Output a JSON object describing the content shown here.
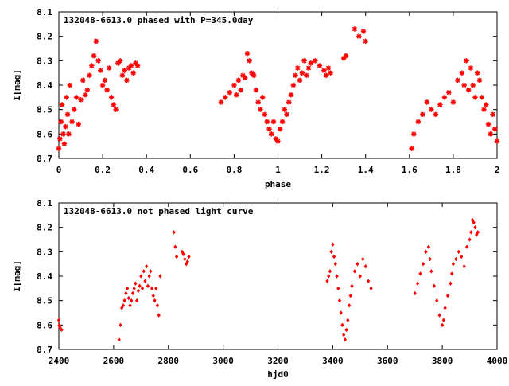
{
  "chart_data": [
    {
      "type": "scatter",
      "title": "132048-6613.0 phased with P=345.0day",
      "xlabel": "phase",
      "ylabel": "I[mag]",
      "xlim": [
        0,
        2
      ],
      "ylim": [
        8.1,
        8.7
      ],
      "y_inverted": true,
      "xticks": [
        "0",
        "0.2",
        "0.4",
        "0.6",
        "0.8",
        "1",
        "1.2",
        "1.4",
        "1.6",
        "1.8",
        "2"
      ],
      "yticks": [
        "8.1",
        "8.2",
        "8.3",
        "8.4",
        "8.5",
        "8.6",
        "8.7"
      ],
      "marker": "asterisk",
      "color": "#ff0000",
      "series": [
        {
          "x": [
            0.0,
            0.005,
            0.01,
            0.015,
            0.02,
            0.025,
            0.03,
            0.035,
            0.04,
            0.045,
            0.05,
            0.06,
            0.07,
            0.08,
            0.09,
            0.1,
            0.11,
            0.12,
            0.13,
            0.14,
            0.15,
            0.16,
            0.17,
            0.18,
            0.19,
            0.2,
            0.21,
            0.22,
            0.23,
            0.24,
            0.25,
            0.26,
            0.27,
            0.28,
            0.29,
            0.3,
            0.31,
            0.32,
            0.33,
            0.34,
            0.35,
            0.36,
            0.74,
            0.76,
            0.78,
            0.8,
            0.81,
            0.82,
            0.83,
            0.84,
            0.85,
            0.86,
            0.87,
            0.88,
            0.89,
            0.9,
            0.91,
            0.92,
            0.93,
            0.94,
            0.95,
            0.96,
            0.97,
            0.98,
            0.99,
            1.0,
            1.01,
            1.02,
            1.03,
            1.04,
            1.05,
            1.06,
            1.07,
            1.08,
            1.09,
            1.1,
            1.11,
            1.12,
            1.13,
            1.14,
            1.15,
            1.17,
            1.19,
            1.21,
            1.22,
            1.23,
            1.24,
            1.3,
            1.31,
            1.35,
            1.37,
            1.39,
            1.4,
            1.61,
            1.62,
            1.64,
            1.66,
            1.68,
            1.7,
            1.72,
            1.74,
            1.76,
            1.78,
            1.8,
            1.82,
            1.84,
            1.85,
            1.86,
            1.87,
            1.88,
            1.89,
            1.9,
            1.91,
            1.92,
            1.93,
            1.94,
            1.95,
            1.96,
            1.97,
            1.98,
            1.99,
            2.0
          ],
          "y": [
            8.66,
            8.62,
            8.55,
            8.48,
            8.6,
            8.64,
            8.57,
            8.45,
            8.52,
            8.6,
            8.4,
            8.55,
            8.5,
            8.45,
            8.56,
            8.46,
            8.38,
            8.44,
            8.42,
            8.36,
            8.32,
            8.28,
            8.22,
            8.3,
            8.34,
            8.4,
            8.38,
            8.42,
            8.33,
            8.45,
            8.48,
            8.5,
            8.31,
            8.3,
            8.36,
            8.34,
            8.38,
            8.33,
            8.32,
            8.35,
            8.31,
            8.32,
            8.47,
            8.45,
            8.43,
            8.4,
            8.44,
            8.38,
            8.42,
            8.36,
            8.37,
            8.27,
            8.3,
            8.35,
            8.36,
            8.42,
            8.47,
            8.5,
            8.45,
            8.52,
            8.55,
            8.58,
            8.6,
            8.55,
            8.62,
            8.63,
            8.58,
            8.55,
            8.5,
            8.52,
            8.47,
            8.44,
            8.4,
            8.36,
            8.33,
            8.38,
            8.35,
            8.3,
            8.36,
            8.33,
            8.31,
            8.3,
            8.32,
            8.34,
            8.36,
            8.33,
            8.35,
            8.29,
            8.28,
            8.17,
            8.2,
            8.18,
            8.22,
            8.66,
            8.6,
            8.55,
            8.52,
            8.47,
            8.5,
            8.52,
            8.48,
            8.45,
            8.43,
            8.47,
            8.38,
            8.35,
            8.4,
            8.3,
            8.42,
            8.33,
            8.4,
            8.45,
            8.35,
            8.38,
            8.45,
            8.5,
            8.48,
            8.56,
            8.6,
            8.52,
            8.58,
            8.63
          ]
        }
      ]
    },
    {
      "type": "scatter",
      "title": "132048-6613.0 not phased light curve",
      "xlabel": "hjd0",
      "ylabel": "I[mag]",
      "xlim": [
        2400,
        4000
      ],
      "ylim": [
        8.1,
        8.7
      ],
      "y_inverted": true,
      "xticks": [
        "2400",
        "2600",
        "2800",
        "3000",
        "3200",
        "3400",
        "3600",
        "3800",
        "4000"
      ],
      "yticks": [
        "8.1",
        "8.2",
        "8.3",
        "8.4",
        "8.5",
        "8.6",
        "8.7"
      ],
      "marker": "diamond",
      "color": "#ff0000",
      "series": [
        {
          "x": [
            2400,
            2402,
            2404,
            2410,
            2620,
            2625,
            2630,
            2635,
            2640,
            2645,
            2650,
            2655,
            2660,
            2665,
            2670,
            2675,
            2680,
            2685,
            2690,
            2695,
            2700,
            2705,
            2710,
            2715,
            2720,
            2725,
            2730,
            2735,
            2740,
            2745,
            2750,
            2755,
            2760,
            2765,
            2770,
            2820,
            2825,
            2830,
            2850,
            2855,
            2860,
            2865,
            2870,
            2875,
            3380,
            3385,
            3390,
            3395,
            3400,
            3405,
            3410,
            3415,
            3420,
            3425,
            3430,
            3435,
            3440,
            3445,
            3450,
            3455,
            3460,
            3465,
            3470,
            3480,
            3490,
            3500,
            3510,
            3520,
            3530,
            3540,
            3700,
            3710,
            3720,
            3730,
            3740,
            3750,
            3755,
            3760,
            3770,
            3780,
            3790,
            3800,
            3805,
            3810,
            3820,
            3830,
            3835,
            3840,
            3850,
            3860,
            3870,
            3880,
            3890,
            3900,
            3905,
            3910,
            3915,
            3920,
            3925,
            3930
          ],
          "y": [
            8.58,
            8.6,
            8.61,
            8.62,
            8.66,
            8.6,
            8.53,
            8.52,
            8.5,
            8.47,
            8.45,
            8.49,
            8.52,
            8.5,
            8.47,
            8.45,
            8.43,
            8.5,
            8.46,
            8.44,
            8.4,
            8.45,
            8.38,
            8.42,
            8.36,
            8.44,
            8.4,
            8.38,
            8.45,
            8.48,
            8.5,
            8.45,
            8.52,
            8.56,
            8.4,
            8.22,
            8.28,
            8.32,
            8.3,
            8.31,
            8.33,
            8.35,
            8.34,
            8.32,
            8.42,
            8.4,
            8.38,
            8.3,
            8.27,
            8.32,
            8.35,
            8.4,
            8.45,
            8.5,
            8.55,
            8.6,
            8.64,
            8.66,
            8.62,
            8.58,
            8.52,
            8.48,
            8.44,
            8.38,
            8.35,
            8.4,
            8.33,
            8.36,
            8.42,
            8.45,
            8.47,
            8.43,
            8.39,
            8.35,
            8.3,
            8.28,
            8.33,
            8.38,
            8.44,
            8.5,
            8.56,
            8.6,
            8.58,
            8.53,
            8.48,
            8.43,
            8.39,
            8.35,
            8.33,
            8.3,
            8.32,
            8.36,
            8.28,
            8.25,
            8.22,
            8.17,
            8.18,
            8.2,
            8.23,
            8.22
          ]
        }
      ]
    }
  ]
}
